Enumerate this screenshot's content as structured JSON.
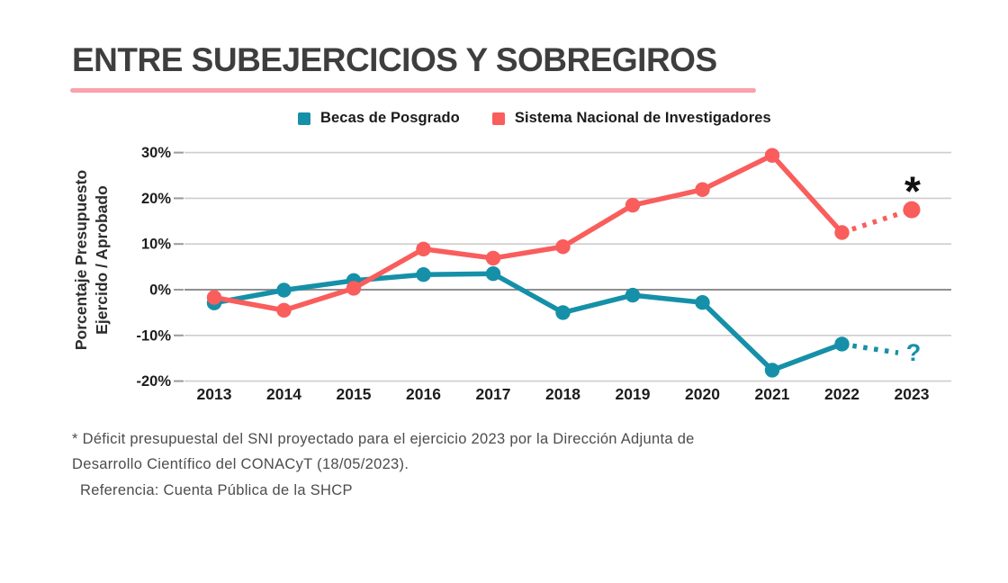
{
  "header": {
    "title": "ENTRE SUBEJERCICIOS Y SOBREGIROS",
    "title_color": "#3e3e3e",
    "underline_color": "#f9a2ab"
  },
  "legend": [
    {
      "label": "Becas de Posgrado",
      "color": "#1590a8"
    },
    {
      "label": "Sistema Nacional de Investigadores",
      "color": "#f95d5c"
    }
  ],
  "chart_data": {
    "type": "line",
    "title": "",
    "xlabel": "",
    "ylabel": "Porcentaje Presupuesto Ejercido / Aprobado",
    "ylabel_lines": [
      "Porcentaje Presupuesto",
      "Ejercido / Aprobado"
    ],
    "legend_position": "top",
    "grid": true,
    "ylim": [
      -20,
      30
    ],
    "categories": [
      "2013",
      "2014",
      "2015",
      "2016",
      "2017",
      "2018",
      "2019",
      "2020",
      "2021",
      "2022",
      "2023"
    ],
    "yticks": [
      {
        "label": "30%",
        "value": 30
      },
      {
        "label": "20%",
        "value": 20
      },
      {
        "label": "10%",
        "value": 10
      },
      {
        "label": "0%",
        "value": 0
      },
      {
        "label": "-10%",
        "value": -10
      },
      {
        "label": "-20%",
        "value": -20
      }
    ],
    "series": [
      {
        "name": "Becas de Posgrado",
        "color": "#1590a8",
        "values": [
          -2.9,
          -0.1,
          2.0,
          3.3,
          3.5,
          -5.0,
          -1.2,
          -2.8,
          -17.6,
          -11.9,
          null
        ],
        "projection": {
          "style": "dotted",
          "from": "2022",
          "to": "2023",
          "end_value": -13.8,
          "end_label": "?"
        }
      },
      {
        "name": "Sistema Nacional de Investigadores",
        "color": "#f95d5c",
        "values": [
          -1.7,
          -4.5,
          0.3,
          8.9,
          6.9,
          9.4,
          18.5,
          21.9,
          29.4,
          12.5,
          17.5
        ],
        "projection": {
          "style": "dotted",
          "from": "2022",
          "to": "2023",
          "annotation": "*"
        }
      }
    ],
    "colors": {
      "grid_line": "#cdcdcd",
      "zero_line": "#8f8f8f",
      "tick_stub": "#9a9a9a",
      "axis_text": "#1d1d1d",
      "axis_title_text": "#2e2e2e",
      "annotation_asterisk": "#111111"
    }
  },
  "footnote": {
    "lines": [
      "* Déficit presupuestal del SNI proyectado para el ejercicio 2023 por la Dirección Adjunta de",
      "Desarrollo Científico del CONACyT (18/05/2023).",
      "Referencia: Cuenta Pública de la SHCP"
    ]
  }
}
